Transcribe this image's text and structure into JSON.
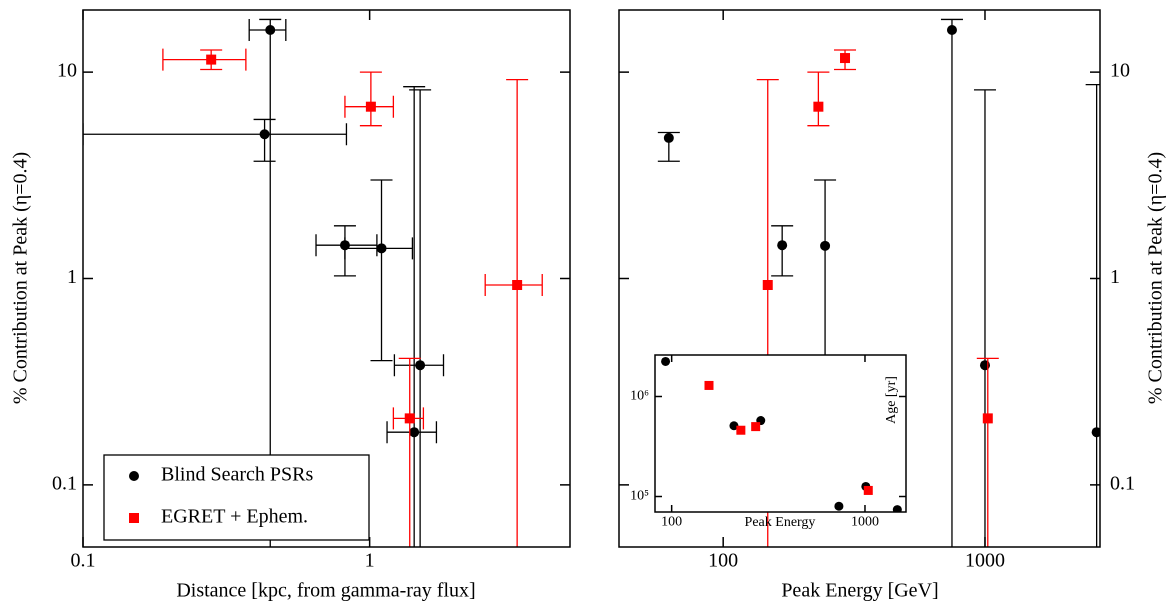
{
  "chart_data": [
    {
      "type": "scatter",
      "x_scale": "log",
      "y_scale": "log",
      "xlabel": "Distance [kpc, from gamma-ray flux]",
      "ylabel": "% Contribution at Peak (η=0.4)",
      "xlim": [
        0.1,
        5
      ],
      "ylim": [
        0.05,
        20
      ],
      "xticks": [
        0.1,
        1
      ],
      "yticks": [
        0.1,
        1,
        10
      ],
      "legend": "lower left",
      "series": [
        {
          "name": "Blind Search PSRs",
          "color": "#000000",
          "marker": "circle",
          "x": [
            0.45,
            0.43,
            0.82,
            1.1,
            1.5,
            1.43
          ],
          "y": [
            16,
            5,
            1.45,
            1.4,
            0.38,
            0.18
          ],
          "x_low": [
            0.38,
            0.1,
            0.65,
            0.82,
            1.22,
            1.15
          ],
          "x_high": [
            0.51,
            0.83,
            1.06,
            1.41,
            1.81,
            1.71
          ],
          "y_low": [
            null,
            3.7,
            1.03,
            0.4,
            null,
            null
          ],
          "y_high": [
            18,
            5.9,
            1.8,
            3,
            8.2,
            8.5
          ]
        },
        {
          "name": "EGRET + Ephem.",
          "color": "#ff0000",
          "marker": "square",
          "x": [
            0.28,
            1.01,
            3.27,
            1.38
          ],
          "y": [
            11.5,
            6.8,
            0.93,
            0.21
          ],
          "x_low": [
            0.19,
            0.82,
            2.53,
            1.21
          ],
          "x_high": [
            0.37,
            1.21,
            4,
            1.54
          ],
          "y_low": [
            10.3,
            5.5,
            null,
            null
          ],
          "y_high": [
            12.8,
            10,
            9.2,
            0.41
          ]
        }
      ]
    },
    {
      "type": "scatter",
      "x_scale": "log",
      "y_scale": "log",
      "xlabel": "Peak Energy [GeV]",
      "ylabel": "% Contribution at Peak (η=0.4)",
      "xlim": [
        40,
        2750
      ],
      "ylim": [
        0.05,
        20
      ],
      "xticks": [
        100,
        1000
      ],
      "yticks": [
        0.1,
        1,
        10
      ],
      "y_axis_side": "right",
      "series": [
        {
          "color": "#000000",
          "marker": "circle",
          "x": [
            748,
            62,
            168,
            245,
            1000,
            2670
          ],
          "y": [
            16,
            4.8,
            1.45,
            1.44,
            0.38,
            0.18
          ],
          "y_low": [
            null,
            3.7,
            1.03,
            0.4,
            null,
            null
          ],
          "y_high": [
            18,
            5.1,
            1.8,
            3,
            8.2,
            8.7
          ]
        },
        {
          "color": "#ff0000",
          "marker": "square",
          "x": [
            231,
            292,
            148,
            1025
          ],
          "y": [
            6.8,
            11.7,
            0.93,
            0.21
          ],
          "y_low": [
            5.5,
            10.3,
            null,
            null
          ],
          "y_high": [
            10,
            12.8,
            9.2,
            0.41
          ]
        }
      ]
    },
    {
      "type": "scatter",
      "x_scale": "log",
      "y_scale": "log",
      "xlabel": "Peak Energy",
      "ylabel": "Age [yr]",
      "xlim": [
        82,
        1630
      ],
      "ylim": [
        70000,
        2600000
      ],
      "xticks": [
        100,
        1000
      ],
      "yticks": [
        {
          "value": 100000,
          "label": "10⁵"
        },
        {
          "value": 1000000,
          "label": "10⁶"
        }
      ],
      "series": [
        {
          "color": "#000000",
          "marker": "circle",
          "x": [
            93,
            210,
            289,
            733,
            1010,
            1470
          ],
          "y": [
            2240000,
            510000,
            575000,
            80000,
            126000,
            74000
          ]
        },
        {
          "color": "#ff0000",
          "marker": "square",
          "x": [
            156,
            228,
            272,
            1040
          ],
          "y": [
            1290000,
            460000,
            500000,
            115000
          ]
        }
      ]
    }
  ]
}
